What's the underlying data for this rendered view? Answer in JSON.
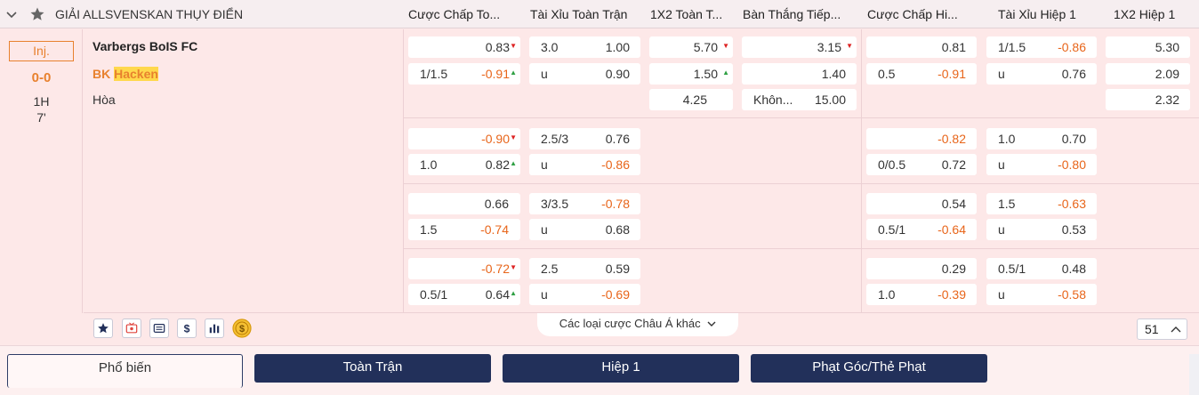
{
  "league": {
    "name": "GIẢI ALLSVENSKAN THỤY ĐIỂN"
  },
  "columns": [
    "Cược Chấp To...",
    "Tài Xỉu Toàn Trận",
    "1X2 Toàn T...",
    "Bàn Thắng Tiếp...",
    "Cược Chấp Hi...",
    "Tài Xỉu Hiệp 1",
    "1X2 Hiệp 1"
  ],
  "match": {
    "inj": "Inj.",
    "score": "0-0",
    "period": "1H",
    "minute": "7'",
    "home": "Varbergs BoIS FC",
    "away_prefix": "BK ",
    "away_highlight": "Hacken",
    "draw": "Hòa"
  },
  "odds": {
    "r1": {
      "hdp_ft": {
        "top": {
          "line": "",
          "odd": "0.83",
          "dir": "down"
        },
        "bot": {
          "line": "1/1.5",
          "odd": "-0.91",
          "dir": "up"
        }
      },
      "ou_ft": {
        "top": {
          "line": "3.0",
          "odd": "1.00"
        },
        "bot": {
          "line": "u",
          "odd": "0.90"
        }
      },
      "x12_ft": {
        "home": {
          "odd": "5.70",
          "dir": "down"
        },
        "away": {
          "odd": "1.50",
          "dir": "up"
        },
        "draw": {
          "odd": "4.25"
        }
      },
      "next_goal": {
        "home": {
          "odd": "3.15",
          "dir": "down"
        },
        "away": {
          "odd": "1.40"
        },
        "none": {
          "label": "Khôn...",
          "odd": "15.00"
        }
      },
      "hdp_1h": {
        "top": {
          "line": "",
          "odd": "0.81"
        },
        "bot": {
          "line": "0.5",
          "odd": "-0.91"
        }
      },
      "ou_1h": {
        "top": {
          "line": "1/1.5",
          "odd": "-0.86"
        },
        "bot": {
          "line": "u",
          "odd": "0.76"
        }
      },
      "x12_1h": {
        "home": {
          "odd": "5.30"
        },
        "away": {
          "odd": "2.09"
        },
        "draw": {
          "odd": "2.32"
        }
      }
    },
    "r2": {
      "hdp_ft": {
        "top": {
          "line": "",
          "odd": "-0.90",
          "dir": "down"
        },
        "bot": {
          "line": "1.0",
          "odd": "0.82",
          "dir": "up"
        }
      },
      "ou_ft": {
        "top": {
          "line": "2.5/3",
          "odd": "0.76"
        },
        "bot": {
          "line": "u",
          "odd": "-0.86"
        }
      },
      "hdp_1h": {
        "top": {
          "line": "",
          "odd": "-0.82"
        },
        "bot": {
          "line": "0/0.5",
          "odd": "0.72"
        }
      },
      "ou_1h": {
        "top": {
          "line": "1.0",
          "odd": "0.70"
        },
        "bot": {
          "line": "u",
          "odd": "-0.80"
        }
      }
    },
    "r3": {
      "hdp_ft": {
        "top": {
          "line": "",
          "odd": "0.66"
        },
        "bot": {
          "line": "1.5",
          "odd": "-0.74"
        }
      },
      "ou_ft": {
        "top": {
          "line": "3/3.5",
          "odd": "-0.78"
        },
        "bot": {
          "line": "u",
          "odd": "0.68"
        }
      },
      "hdp_1h": {
        "top": {
          "line": "",
          "odd": "0.54"
        },
        "bot": {
          "line": "0.5/1",
          "odd": "-0.64"
        }
      },
      "ou_1h": {
        "top": {
          "line": "1.5",
          "odd": "-0.63"
        },
        "bot": {
          "line": "u",
          "odd": "0.53"
        }
      }
    },
    "r4": {
      "hdp_ft": {
        "top": {
          "line": "",
          "odd": "-0.72",
          "dir": "down"
        },
        "bot": {
          "line": "0.5/1",
          "odd": "0.64",
          "dir": "up"
        }
      },
      "ou_ft": {
        "top": {
          "line": "2.5",
          "odd": "0.59"
        },
        "bot": {
          "line": "u",
          "odd": "-0.69"
        }
      },
      "hdp_1h": {
        "top": {
          "line": "",
          "odd": "0.29"
        },
        "bot": {
          "line": "1.0",
          "odd": "-0.39"
        }
      },
      "ou_1h": {
        "top": {
          "line": "0.5/1",
          "odd": "0.48"
        },
        "bot": {
          "line": "u",
          "odd": "-0.58"
        }
      }
    }
  },
  "footer": {
    "more_bets": "Các loại cược Châu Á khác",
    "count": "51",
    "icons": [
      "star-icon",
      "live-tv-icon",
      "ticket-icon",
      "dollar-icon",
      "stats-icon",
      "cashout-coin-icon"
    ]
  },
  "tabs": [
    "Phổ biến",
    "Toàn Trận",
    "Hiệp 1",
    "Phạt Góc/Thẻ Phạt"
  ],
  "colors": {
    "accent_orange": "#e8812e",
    "negative_odd": "#e8651a",
    "tab_navy": "#22305a",
    "arrow_up": "#2ea043",
    "arrow_down": "#dd2222"
  }
}
